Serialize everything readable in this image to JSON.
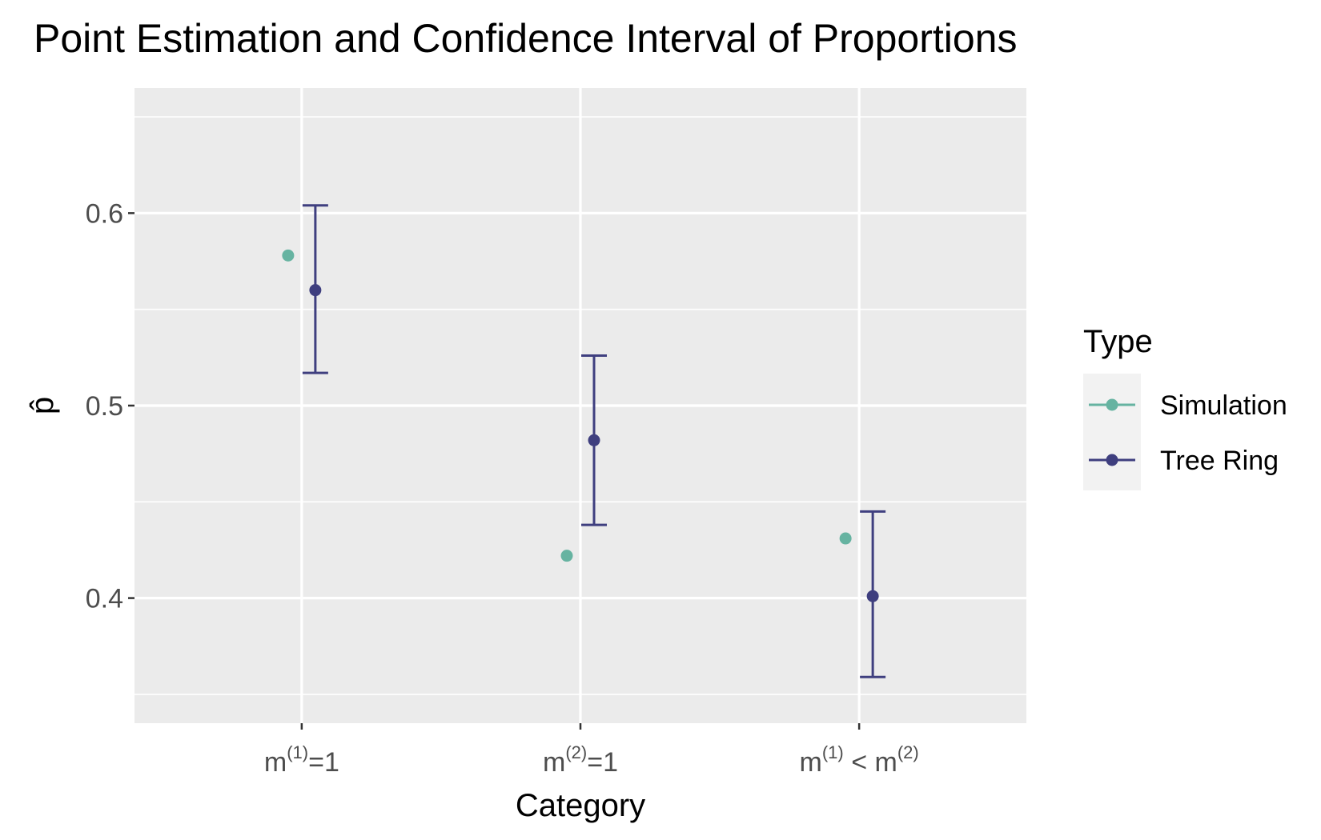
{
  "chart_data": {
    "type": "scatter",
    "title": "Point Estimation and Confidence Interval of Proportions",
    "xlabel": "Category",
    "ylabel": "p̂",
    "categories": [
      {
        "base": "m",
        "sup": "(1)",
        "rest": "=1"
      },
      {
        "base": "m",
        "sup": "(2)",
        "rest": "=1"
      },
      {
        "base": "m",
        "sup": "(1)",
        "rest": " < m",
        "sup2": "(2)"
      }
    ],
    "ylim": [
      0.335,
      0.665
    ],
    "yticks": [
      0.4,
      0.5,
      0.6
    ],
    "ytick_labels": [
      "0.4",
      "0.5",
      "0.6"
    ],
    "grid": true,
    "legend": {
      "title": "Type",
      "placement": "right"
    },
    "series": [
      {
        "name": "Simulation",
        "color": "#66b3a1",
        "values": [
          0.578,
          0.422,
          0.431
        ]
      },
      {
        "name": "Tree Ring",
        "color": "#3f3f7f",
        "values": [
          0.56,
          0.482,
          0.401
        ],
        "lower": [
          0.517,
          0.438,
          0.359
        ],
        "upper": [
          0.604,
          0.526,
          0.445
        ]
      }
    ]
  }
}
